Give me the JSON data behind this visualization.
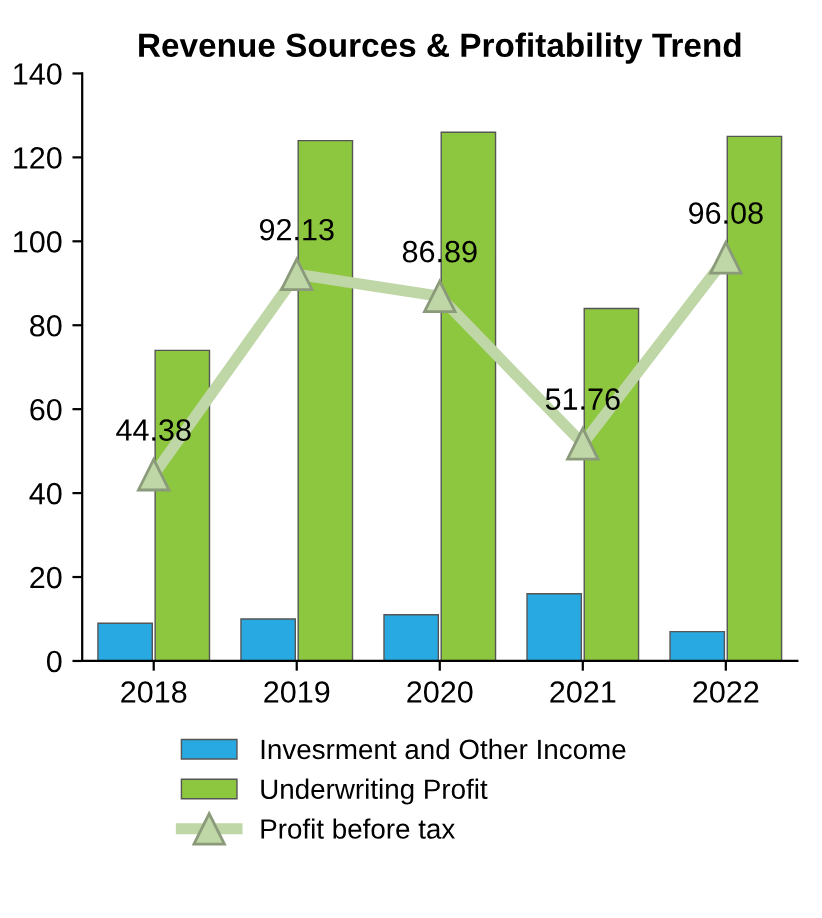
{
  "chart_data": {
    "type": "bar",
    "title": "Revenue Sources & Profitability Trend",
    "categories": [
      "2018",
      "2019",
      "2020",
      "2021",
      "2022"
    ],
    "series": [
      {
        "name": "Invesrment and Other Income",
        "color": "#29a9e1",
        "values": [
          9,
          10,
          11,
          16,
          7
        ]
      },
      {
        "name": "Underwriting Profit",
        "color": "#8dc63f",
        "values": [
          74,
          124,
          126,
          84,
          125
        ]
      },
      {
        "name": "Profit before tax",
        "type": "line",
        "color": "#bfd6a6",
        "marker": "triangle",
        "values": [
          44.38,
          92.13,
          86.89,
          51.76,
          96.08
        ],
        "value_labels": [
          "44.38",
          "92.13",
          "86.89",
          "51.76",
          "96.08"
        ]
      }
    ],
    "ylim": [
      0,
      140
    ],
    "yticks": [
      0,
      20,
      40,
      60,
      80,
      100,
      120,
      140
    ],
    "grid": false,
    "legend": "bottom"
  }
}
